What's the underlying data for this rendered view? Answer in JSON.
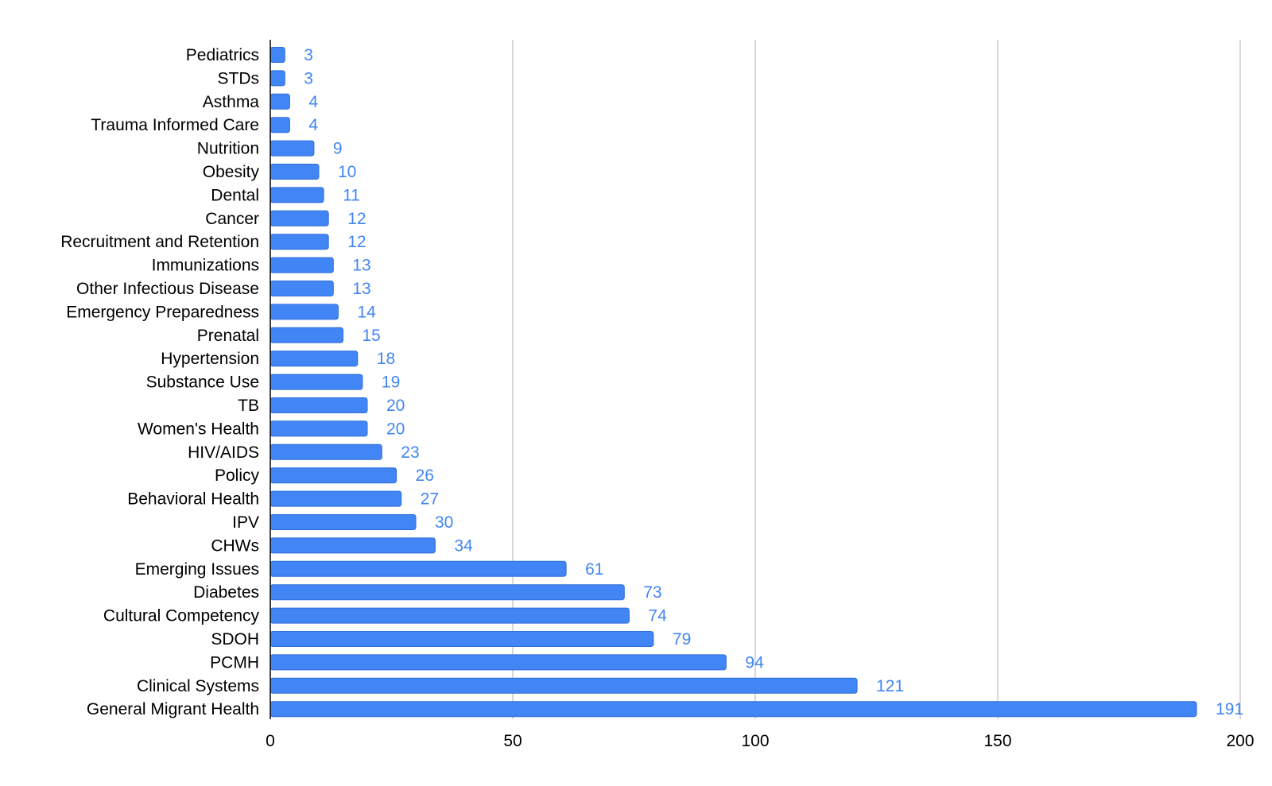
{
  "chart_data": {
    "type": "bar",
    "orientation": "horizontal",
    "categories": [
      "Pediatrics",
      "STDs",
      "Asthma",
      "Trauma Informed Care",
      "Nutrition",
      "Obesity",
      "Dental",
      "Cancer",
      "Recruitment and Retention",
      "Immunizations",
      "Other Infectious Disease",
      "Emergency Preparedness",
      "Prenatal",
      "Hypertension",
      "Substance Use",
      "TB",
      "Women's Health",
      "HIV/AIDS",
      "Policy",
      "Behavioral Health",
      "IPV",
      "CHWs",
      "Emerging Issues",
      "Diabetes",
      "Cultural Competency",
      "SDOH",
      "PCMH",
      "Clinical Systems",
      "General Migrant Health"
    ],
    "values": [
      3,
      3,
      4,
      4,
      9,
      10,
      11,
      12,
      12,
      13,
      13,
      14,
      15,
      18,
      19,
      20,
      20,
      23,
      26,
      27,
      30,
      34,
      61,
      73,
      74,
      79,
      94,
      121,
      191
    ],
    "data_labels": [
      "3",
      "3",
      "4",
      "4",
      "9",
      "10",
      "11",
      "12",
      "12",
      "13",
      "13",
      "14",
      "15",
      "18",
      "19",
      "20",
      "20",
      "23",
      "26",
      "27",
      "30",
      "34",
      "61",
      "73",
      "74",
      "79",
      "94",
      "121",
      "191"
    ],
    "xlim": [
      0,
      200
    ],
    "x_ticks": [
      0,
      50,
      100,
      150,
      200
    ],
    "x_tick_labels": [
      "0",
      "50",
      "100",
      "150",
      "200"
    ],
    "grid": "vertical",
    "legend": "none",
    "title": "",
    "xlabel": "",
    "ylabel": ""
  },
  "colors": {
    "bar": "#4285f4",
    "bar_edge": "#2f6fd8",
    "value_label": "#4285f4",
    "grid": "#cccccc",
    "axis": "#000000",
    "text": "#000000"
  }
}
